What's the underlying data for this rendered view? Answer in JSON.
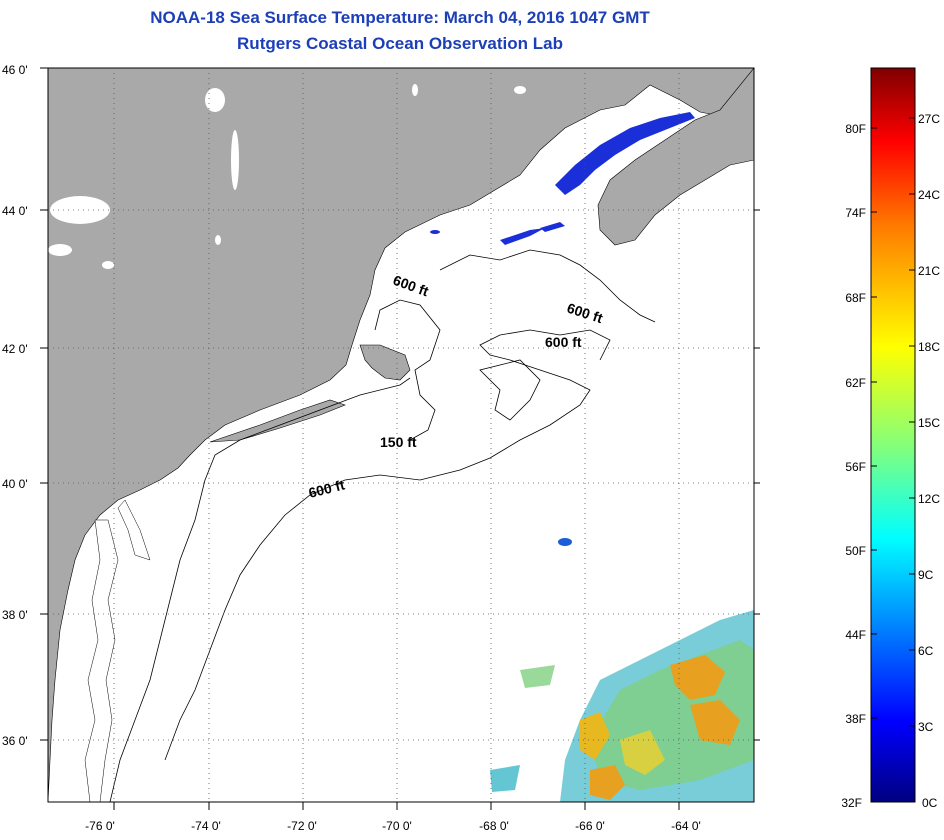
{
  "header": {
    "title": "NOAA-18 Sea Surface Temperature:  March 04, 2016 1047 GMT",
    "subtitle": "Rutgers Coastal Ocean Observation Lab"
  },
  "map": {
    "lat_labels": [
      "46 0'",
      "44 0'",
      "42 0'",
      "40 0'",
      "38 0'",
      "36 0'"
    ],
    "lon_labels": [
      "-76 0'",
      "-74 0'",
      "-72 0'",
      "-70 0'",
      "-68 0'",
      "-66 0'",
      "-64 0'"
    ],
    "contour_labels": [
      {
        "text": "600 ft"
      },
      {
        "text": "600 ft"
      },
      {
        "text": "600 ft"
      },
      {
        "text": "150 ft"
      },
      {
        "text": "600 ft"
      }
    ],
    "colors": {
      "land": "#a9a9a9",
      "ocean": "#ffffff",
      "cold_water": "#1a2fd8",
      "warm_water": "#e8a020"
    }
  },
  "colorbar": {
    "f_labels": [
      "80F",
      "74F",
      "68F",
      "62F",
      "56F",
      "50F",
      "44F",
      "38F",
      "32F"
    ],
    "c_labels": [
      "27C",
      "24C",
      "21C",
      "18C",
      "15C",
      "12C",
      "9C",
      "6C",
      "3C",
      "0C"
    ],
    "stops": [
      "#00007f",
      "#0000ff",
      "#007fff",
      "#00ffff",
      "#7fff7f",
      "#ffff00",
      "#ff7f00",
      "#ff0000",
      "#7f0000"
    ]
  }
}
